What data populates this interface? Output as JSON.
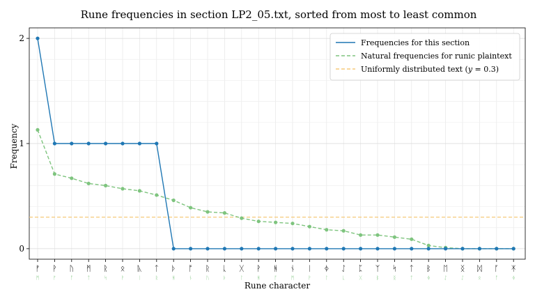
{
  "chart_data": {
    "type": "line",
    "title": "Rune frequencies in section LP2_05.txt, sorted from most to least common",
    "xlabel": "Rune character",
    "ylabel": "Frequency",
    "ylim": [
      -0.1,
      2.1
    ],
    "yticks": [
      0,
      1,
      2
    ],
    "grid": true,
    "legend_position": "top-right",
    "categories": [
      "ᚠ",
      "ᚹ",
      "ᚢ",
      "ᛗ",
      "ᚱ",
      "ᛟ",
      "ᚣ",
      "ᛏ",
      "ᚦ",
      "ᚩ",
      "ᚱ",
      "ᚳ",
      "ᚷ",
      "ᚹ",
      "ᚻ",
      "ᚾ",
      "ᛁ",
      "ᛄ",
      "ᛇ",
      "ᛈ",
      "ᛉ",
      "ᛋ",
      "ᛏ",
      "ᛒ",
      "ᛖ",
      "ᛝ",
      "ᛞ",
      "ᚪ",
      "ᛡ"
    ],
    "secondary_labels": [
      "ᛗ",
      "ᚠ",
      "ᚩ",
      "ᛏ",
      "ᛋ",
      "ᚹ",
      "ᛁ",
      "ᚱ",
      "ᚻ",
      "ᚾ",
      "ᚢ",
      "ᚦ",
      "ᛚ",
      "ᚻ",
      "ᚩ",
      "ᛗ",
      "ᚹ",
      "ᛚ",
      "ᚳ",
      "ᚷ",
      "ᛒ",
      "ᛝ",
      "ᛏ",
      "ᛄ",
      "ᛇ",
      "ᛇ",
      "ᛟ",
      "ᚩ",
      "ᛄ"
    ],
    "series": [
      {
        "name": "Frequencies for this section",
        "color": "#1f77b4",
        "style": "solid",
        "values": [
          2,
          1,
          1,
          1,
          1,
          1,
          1,
          1,
          0,
          0,
          0,
          0,
          0,
          0,
          0,
          0,
          0,
          0,
          0,
          0,
          0,
          0,
          0,
          0,
          0,
          0,
          0,
          0,
          0
        ]
      },
      {
        "name": "Natural frequencies for runic plaintext",
        "color": "#7ec47e",
        "style": "dashed",
        "values": [
          1.13,
          0.71,
          0.67,
          0.62,
          0.6,
          0.57,
          0.55,
          0.51,
          0.46,
          0.39,
          0.35,
          0.34,
          0.29,
          0.26,
          0.25,
          0.24,
          0.21,
          0.18,
          0.17,
          0.13,
          0.13,
          0.11,
          0.09,
          0.03,
          0.01,
          0,
          0,
          0,
          0
        ]
      }
    ],
    "reference_line": {
      "name": "Uniformly distributed text (𝑦 = 0.3)",
      "y": 0.3,
      "color": "#f5c97a",
      "style": "dashed"
    }
  }
}
